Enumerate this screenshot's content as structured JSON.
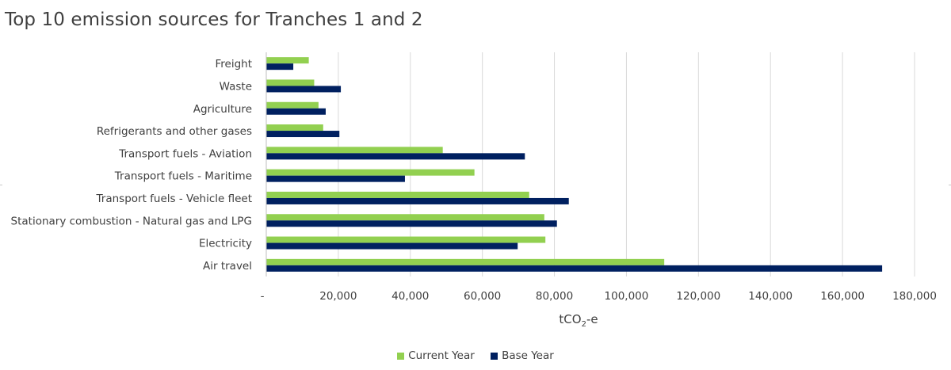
{
  "chart_data": {
    "type": "bar",
    "orientation": "horizontal",
    "title": "Top 10 emission sources for Tranches 1 and 2",
    "xlabel_prefix": "tCO",
    "xlabel_sub": "2",
    "xlabel_suffix": "-e",
    "xlim": [
      0,
      180000
    ],
    "ticks": [
      0,
      20000,
      40000,
      60000,
      80000,
      100000,
      120000,
      140000,
      160000,
      180000
    ],
    "tick_labels": [
      "-",
      "20,000",
      "40,000",
      "60,000",
      "80,000",
      "100,000",
      "120,000",
      "140,000",
      "160,000",
      "180,000"
    ],
    "grid": true,
    "legend_position": "bottom",
    "categories": [
      "Freight",
      "Waste",
      "Agriculture",
      "Refrigerants and other gases",
      "Transport fuels  - Aviation",
      "Transport fuels - Maritime",
      "Transport fuels - Vehicle fleet",
      "Stationary combustion - Natural gas and LPG",
      "Electricity",
      "Air travel"
    ],
    "series": [
      {
        "name": "Current Year",
        "color": "#92d050",
        "values": [
          11800,
          13300,
          14500,
          15800,
          49000,
          57800,
          73000,
          77200,
          77500,
          110500
        ]
      },
      {
        "name": "Base Year",
        "color": "#002060",
        "values": [
          7500,
          20700,
          16500,
          20300,
          71800,
          38500,
          84000,
          80700,
          69800,
          171000
        ]
      }
    ]
  }
}
